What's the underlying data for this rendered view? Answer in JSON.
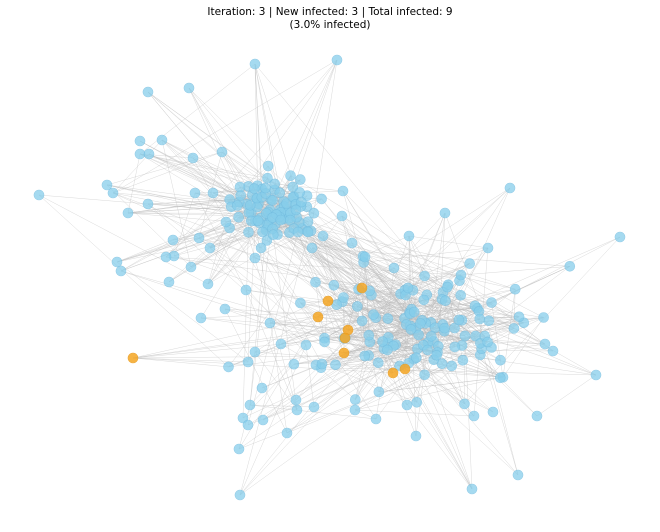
{
  "title": "Iteration: 3 | New infected: 3 | Total infected: 9",
  "subtitle": "(3.0% infected)"
}
